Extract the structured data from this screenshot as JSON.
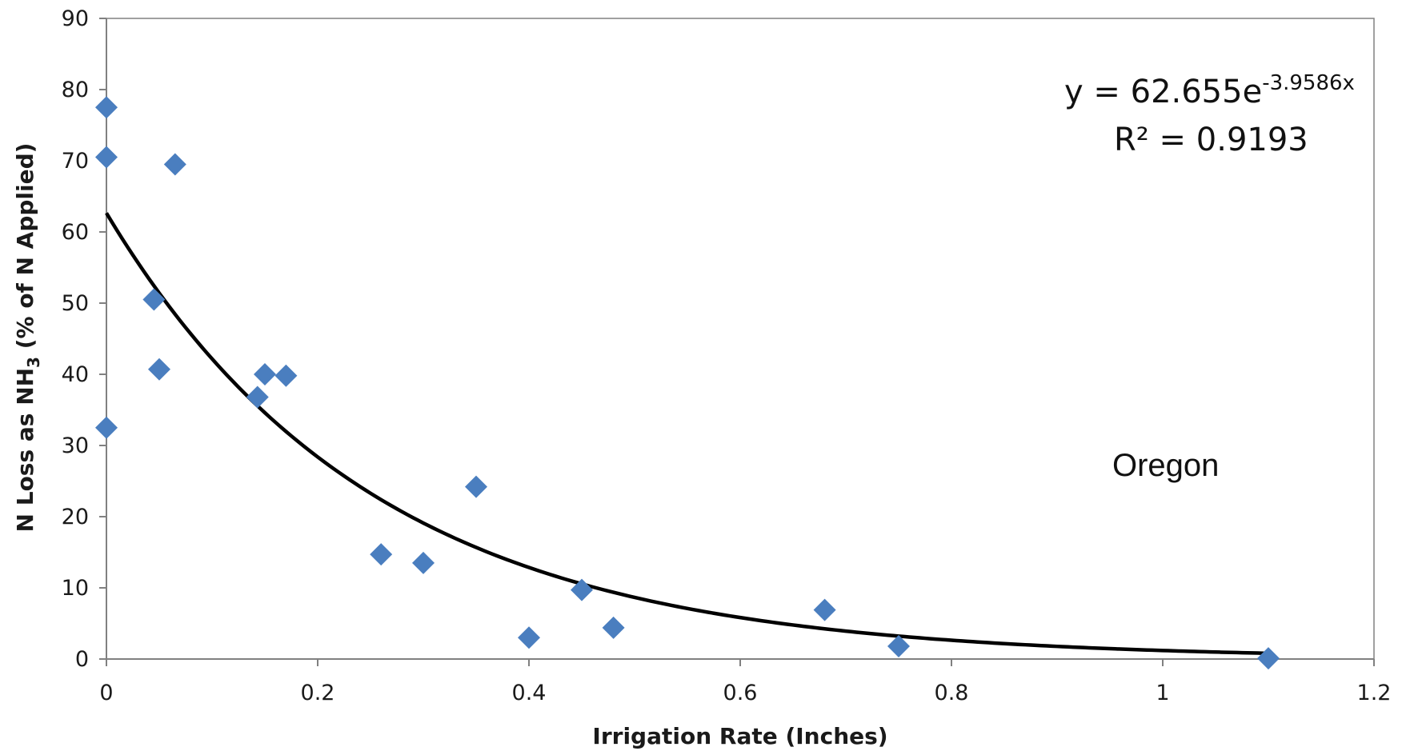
{
  "chart_data": {
    "type": "scatter",
    "xlabel": "Irrigation Rate (Inches)",
    "ylabel_main": "N Loss as NH",
    "ylabel_sub": "3",
    "ylabel_tail": " (% of N Applied)",
    "xlim": [
      0,
      1.2
    ],
    "ylim": [
      0,
      90
    ],
    "x_ticks": [
      "0",
      "0.2",
      "0.4",
      "0.6",
      "0.8",
      "1",
      "1.2"
    ],
    "y_ticks": [
      "0",
      "10",
      "20",
      "30",
      "40",
      "50",
      "60",
      "70",
      "80",
      "90"
    ],
    "grid": false,
    "marker": "diamond",
    "colors": {
      "points": "#4a7ebf",
      "trendline": "#000000",
      "axes": "#808080"
    },
    "points": [
      {
        "x": 0.0,
        "y": 77.5
      },
      {
        "x": 0.0,
        "y": 70.5
      },
      {
        "x": 0.0,
        "y": 32.5
      },
      {
        "x": 0.065,
        "y": 69.5
      },
      {
        "x": 0.045,
        "y": 50.5
      },
      {
        "x": 0.05,
        "y": 40.7
      },
      {
        "x": 0.143,
        "y": 36.8
      },
      {
        "x": 0.15,
        "y": 40.0
      },
      {
        "x": 0.17,
        "y": 39.8
      },
      {
        "x": 0.26,
        "y": 14.7
      },
      {
        "x": 0.3,
        "y": 13.5
      },
      {
        "x": 0.35,
        "y": 24.2
      },
      {
        "x": 0.4,
        "y": 3.0
      },
      {
        "x": 0.45,
        "y": 9.7
      },
      {
        "x": 0.48,
        "y": 4.4
      },
      {
        "x": 0.68,
        "y": 6.9
      },
      {
        "x": 0.75,
        "y": 1.8
      },
      {
        "x": 1.1,
        "y": 0.1
      }
    ],
    "trendline": {
      "type": "exponential",
      "a": 62.655,
      "b": -3.9586,
      "x_range": [
        0,
        1.1
      ]
    },
    "annotations": {
      "equation_main": "y = 62.655e",
      "equation_exp": "-3.9586x",
      "r2_label": "R² = 0.9193",
      "region": "Oregon"
    }
  }
}
